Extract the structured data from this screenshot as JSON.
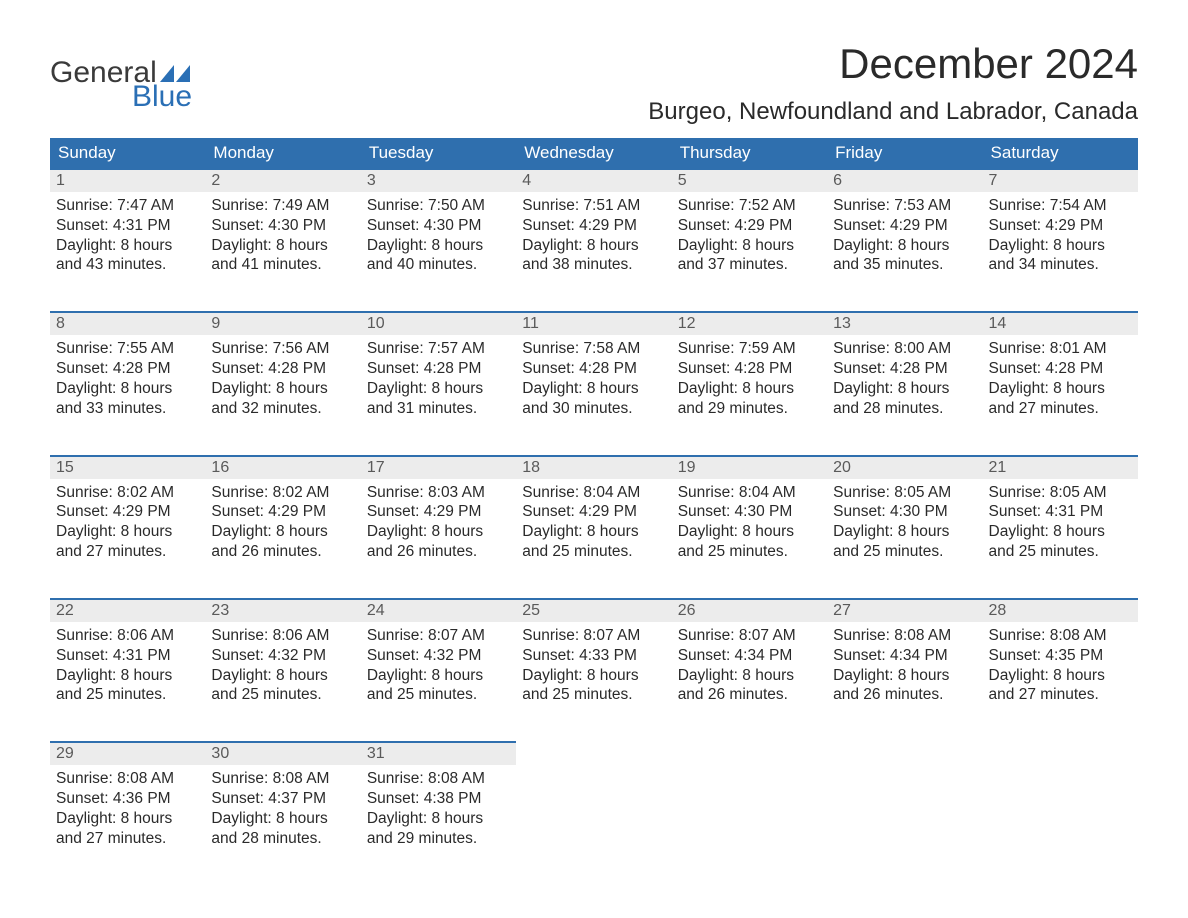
{
  "logo": {
    "word1": "General",
    "word2": "Blue"
  },
  "title": "December 2024",
  "location": "Burgeo, Newfoundland and Labrador, Canada",
  "colors": {
    "header_bg": "#2f6fae",
    "header_text": "#ffffff",
    "daynum_bg": "#ececec",
    "daynum_text": "#5a5a5a",
    "border": "#2f6fae",
    "body_text": "#2a2a2a",
    "logo_blue": "#2a6fb5",
    "page_bg": "#ffffff"
  },
  "typography": {
    "title_fontsize": 42,
    "location_fontsize": 24,
    "header_fontsize": 17,
    "daynum_fontsize": 16,
    "body_fontsize": 15.5,
    "font_family": "Arial"
  },
  "layout": {
    "columns": 7,
    "rows": 5,
    "col_width_pct": 14.285
  },
  "headers": [
    "Sunday",
    "Monday",
    "Tuesday",
    "Wednesday",
    "Thursday",
    "Friday",
    "Saturday"
  ],
  "weeks": [
    [
      {
        "n": "1",
        "sr": "Sunrise: 7:47 AM",
        "ss": "Sunset: 4:31 PM",
        "d1": "Daylight: 8 hours",
        "d2": "and 43 minutes."
      },
      {
        "n": "2",
        "sr": "Sunrise: 7:49 AM",
        "ss": "Sunset: 4:30 PM",
        "d1": "Daylight: 8 hours",
        "d2": "and 41 minutes."
      },
      {
        "n": "3",
        "sr": "Sunrise: 7:50 AM",
        "ss": "Sunset: 4:30 PM",
        "d1": "Daylight: 8 hours",
        "d2": "and 40 minutes."
      },
      {
        "n": "4",
        "sr": "Sunrise: 7:51 AM",
        "ss": "Sunset: 4:29 PM",
        "d1": "Daylight: 8 hours",
        "d2": "and 38 minutes."
      },
      {
        "n": "5",
        "sr": "Sunrise: 7:52 AM",
        "ss": "Sunset: 4:29 PM",
        "d1": "Daylight: 8 hours",
        "d2": "and 37 minutes."
      },
      {
        "n": "6",
        "sr": "Sunrise: 7:53 AM",
        "ss": "Sunset: 4:29 PM",
        "d1": "Daylight: 8 hours",
        "d2": "and 35 minutes."
      },
      {
        "n": "7",
        "sr": "Sunrise: 7:54 AM",
        "ss": "Sunset: 4:29 PM",
        "d1": "Daylight: 8 hours",
        "d2": "and 34 minutes."
      }
    ],
    [
      {
        "n": "8",
        "sr": "Sunrise: 7:55 AM",
        "ss": "Sunset: 4:28 PM",
        "d1": "Daylight: 8 hours",
        "d2": "and 33 minutes."
      },
      {
        "n": "9",
        "sr": "Sunrise: 7:56 AM",
        "ss": "Sunset: 4:28 PM",
        "d1": "Daylight: 8 hours",
        "d2": "and 32 minutes."
      },
      {
        "n": "10",
        "sr": "Sunrise: 7:57 AM",
        "ss": "Sunset: 4:28 PM",
        "d1": "Daylight: 8 hours",
        "d2": "and 31 minutes."
      },
      {
        "n": "11",
        "sr": "Sunrise: 7:58 AM",
        "ss": "Sunset: 4:28 PM",
        "d1": "Daylight: 8 hours",
        "d2": "and 30 minutes."
      },
      {
        "n": "12",
        "sr": "Sunrise: 7:59 AM",
        "ss": "Sunset: 4:28 PM",
        "d1": "Daylight: 8 hours",
        "d2": "and 29 minutes."
      },
      {
        "n": "13",
        "sr": "Sunrise: 8:00 AM",
        "ss": "Sunset: 4:28 PM",
        "d1": "Daylight: 8 hours",
        "d2": "and 28 minutes."
      },
      {
        "n": "14",
        "sr": "Sunrise: 8:01 AM",
        "ss": "Sunset: 4:28 PM",
        "d1": "Daylight: 8 hours",
        "d2": "and 27 minutes."
      }
    ],
    [
      {
        "n": "15",
        "sr": "Sunrise: 8:02 AM",
        "ss": "Sunset: 4:29 PM",
        "d1": "Daylight: 8 hours",
        "d2": "and 27 minutes."
      },
      {
        "n": "16",
        "sr": "Sunrise: 8:02 AM",
        "ss": "Sunset: 4:29 PM",
        "d1": "Daylight: 8 hours",
        "d2": "and 26 minutes."
      },
      {
        "n": "17",
        "sr": "Sunrise: 8:03 AM",
        "ss": "Sunset: 4:29 PM",
        "d1": "Daylight: 8 hours",
        "d2": "and 26 minutes."
      },
      {
        "n": "18",
        "sr": "Sunrise: 8:04 AM",
        "ss": "Sunset: 4:29 PM",
        "d1": "Daylight: 8 hours",
        "d2": "and 25 minutes."
      },
      {
        "n": "19",
        "sr": "Sunrise: 8:04 AM",
        "ss": "Sunset: 4:30 PM",
        "d1": "Daylight: 8 hours",
        "d2": "and 25 minutes."
      },
      {
        "n": "20",
        "sr": "Sunrise: 8:05 AM",
        "ss": "Sunset: 4:30 PM",
        "d1": "Daylight: 8 hours",
        "d2": "and 25 minutes."
      },
      {
        "n": "21",
        "sr": "Sunrise: 8:05 AM",
        "ss": "Sunset: 4:31 PM",
        "d1": "Daylight: 8 hours",
        "d2": "and 25 minutes."
      }
    ],
    [
      {
        "n": "22",
        "sr": "Sunrise: 8:06 AM",
        "ss": "Sunset: 4:31 PM",
        "d1": "Daylight: 8 hours",
        "d2": "and 25 minutes."
      },
      {
        "n": "23",
        "sr": "Sunrise: 8:06 AM",
        "ss": "Sunset: 4:32 PM",
        "d1": "Daylight: 8 hours",
        "d2": "and 25 minutes."
      },
      {
        "n": "24",
        "sr": "Sunrise: 8:07 AM",
        "ss": "Sunset: 4:32 PM",
        "d1": "Daylight: 8 hours",
        "d2": "and 25 minutes."
      },
      {
        "n": "25",
        "sr": "Sunrise: 8:07 AM",
        "ss": "Sunset: 4:33 PM",
        "d1": "Daylight: 8 hours",
        "d2": "and 25 minutes."
      },
      {
        "n": "26",
        "sr": "Sunrise: 8:07 AM",
        "ss": "Sunset: 4:34 PM",
        "d1": "Daylight: 8 hours",
        "d2": "and 26 minutes."
      },
      {
        "n": "27",
        "sr": "Sunrise: 8:08 AM",
        "ss": "Sunset: 4:34 PM",
        "d1": "Daylight: 8 hours",
        "d2": "and 26 minutes."
      },
      {
        "n": "28",
        "sr": "Sunrise: 8:08 AM",
        "ss": "Sunset: 4:35 PM",
        "d1": "Daylight: 8 hours",
        "d2": "and 27 minutes."
      }
    ],
    [
      {
        "n": "29",
        "sr": "Sunrise: 8:08 AM",
        "ss": "Sunset: 4:36 PM",
        "d1": "Daylight: 8 hours",
        "d2": "and 27 minutes."
      },
      {
        "n": "30",
        "sr": "Sunrise: 8:08 AM",
        "ss": "Sunset: 4:37 PM",
        "d1": "Daylight: 8 hours",
        "d2": "and 28 minutes."
      },
      {
        "n": "31",
        "sr": "Sunrise: 8:08 AM",
        "ss": "Sunset: 4:38 PM",
        "d1": "Daylight: 8 hours",
        "d2": "and 29 minutes."
      },
      null,
      null,
      null,
      null
    ]
  ]
}
